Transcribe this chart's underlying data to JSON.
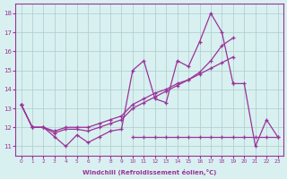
{
  "x": [
    0,
    1,
    2,
    3,
    4,
    5,
    6,
    7,
    8,
    9,
    10,
    11,
    12,
    13,
    14,
    15,
    16,
    17,
    18,
    19,
    20,
    21,
    22,
    23
  ],
  "line_spiky": [
    13.2,
    12.0,
    12.0,
    11.5,
    11.0,
    11.6,
    11.2,
    11.5,
    11.8,
    11.9,
    15.0,
    15.5,
    13.5,
    13.3,
    15.5,
    15.2,
    16.5,
    18.0,
    17.0,
    14.3,
    null,
    null,
    null,
    null
  ],
  "line_diag1": [
    13.2,
    12.0,
    12.0,
    11.7,
    11.9,
    11.9,
    11.8,
    12.0,
    12.2,
    12.4,
    13.0,
    13.3,
    13.6,
    13.9,
    14.2,
    14.5,
    14.8,
    15.1,
    15.4,
    15.7,
    null,
    null,
    null,
    null
  ],
  "line_diag2": [
    13.2,
    12.0,
    12.0,
    11.8,
    12.0,
    12.0,
    12.0,
    12.2,
    12.4,
    12.6,
    13.2,
    13.5,
    13.8,
    14.0,
    14.3,
    14.5,
    14.9,
    15.5,
    16.3,
    16.7,
    null,
    null,
    null,
    null
  ],
  "line_flat": [
    null,
    null,
    null,
    null,
    null,
    null,
    null,
    null,
    null,
    null,
    11.5,
    11.5,
    11.5,
    11.5,
    11.5,
    11.5,
    11.5,
    11.5,
    11.5,
    11.5,
    11.5,
    11.5,
    11.5,
    11.5
  ],
  "line_drop": [
    null,
    null,
    null,
    null,
    null,
    null,
    null,
    null,
    null,
    null,
    null,
    null,
    null,
    null,
    null,
    null,
    null,
    null,
    null,
    14.3,
    14.3,
    11.0,
    12.4,
    11.5
  ],
  "color": "#993399",
  "bg_color": "#d9f0f0",
  "grid_color": "#aacccc",
  "ylim": [
    10.5,
    18.5
  ],
  "xlim": [
    -0.5,
    23.5
  ],
  "yticks": [
    11,
    12,
    13,
    14,
    15,
    16,
    17,
    18
  ],
  "xticks": [
    0,
    1,
    2,
    3,
    4,
    5,
    6,
    7,
    8,
    9,
    10,
    11,
    12,
    13,
    14,
    15,
    16,
    17,
    18,
    19,
    20,
    21,
    22,
    23
  ],
  "xlabel": "Windchill (Refroidissement éolien,°C)"
}
